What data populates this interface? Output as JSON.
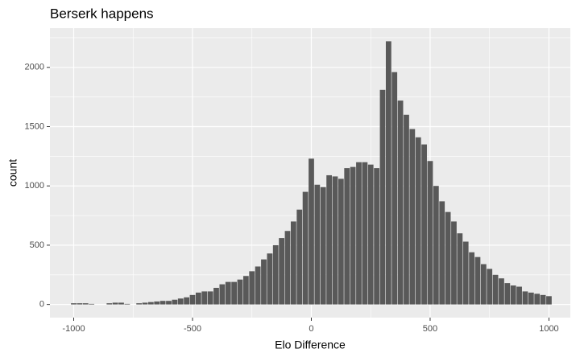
{
  "chart_data": {
    "type": "histogram",
    "title": "Berserk happens",
    "x_label": "Elo Difference",
    "y_label": "count",
    "color": "#595959",
    "bins": [
      -1012.5,
      -987.5,
      -962.5,
      -937.5,
      -912.5,
      -887.5,
      -862.5,
      -837.5,
      -812.5,
      -787.5,
      -762.5,
      -737.5,
      -712.5,
      -687.5,
      -662.5,
      -637.5,
      -612.5,
      -587.5,
      -562.5,
      -537.5,
      -512.5,
      -487.5,
      -462.5,
      -437.5,
      -412.5,
      -387.5,
      -362.5,
      -337.5,
      -312.5,
      -287.5,
      -262.5,
      -237.5,
      -212.5,
      -187.5,
      -162.5,
      -137.5,
      -112.5,
      -87.5,
      -62.5,
      -37.5,
      -12.5,
      12.5,
      37.5,
      62.5,
      87.5,
      112.5,
      137.5,
      162.5,
      187.5,
      212.5,
      237.5,
      262.5,
      287.5,
      312.5,
      337.5,
      362.5,
      387.5,
      412.5,
      437.5,
      462.5,
      487.5,
      512.5,
      537.5,
      562.5,
      587.5,
      612.5,
      637.5,
      662.5,
      687.5,
      712.5,
      737.5,
      762.5,
      787.5,
      812.5,
      837.5,
      862.5,
      887.5,
      912.5,
      937.5,
      962.5,
      987.5,
      1012.5
    ],
    "counts": [
      10,
      10,
      10,
      5,
      0,
      0,
      10,
      15,
      15,
      5,
      0,
      10,
      15,
      20,
      25,
      30,
      30,
      40,
      50,
      60,
      80,
      100,
      110,
      110,
      140,
      170,
      190,
      190,
      210,
      240,
      280,
      320,
      380,
      430,
      500,
      560,
      620,
      700,
      800,
      950,
      1230,
      1010,
      990,
      1090,
      1080,
      1060,
      1150,
      1160,
      1200,
      1200,
      1180,
      1150,
      1810,
      2220,
      1960,
      1720,
      1600,
      1480,
      1410,
      1350,
      1210,
      1000,
      870,
      780,
      700,
      600,
      530,
      440,
      400,
      340,
      300,
      250,
      220,
      180,
      160,
      150,
      110,
      100,
      90,
      80,
      70
    ],
    "xlim": [
      -1100,
      1090
    ],
    "ylim": [
      -111,
      2331
    ],
    "xticks": [
      -1000,
      -500,
      0,
      500,
      1000
    ],
    "yticks": [
      0,
      500,
      1000,
      1500,
      2000
    ],
    "x_minor_ticks": [
      -750,
      -250,
      250,
      750
    ],
    "y_minor_ticks": [
      250,
      750,
      1250,
      1750,
      2250
    ],
    "grid": true
  }
}
